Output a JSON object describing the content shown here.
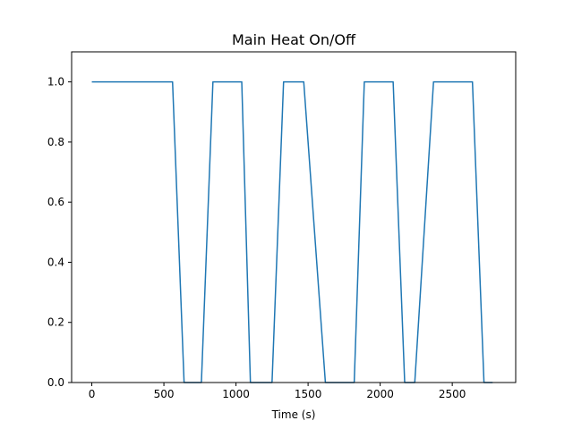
{
  "chart_data": {
    "type": "line",
    "title": "Main Heat On/Off",
    "xlabel": "Time (s)",
    "ylabel": "",
    "xlim": [
      -140,
      2940
    ],
    "ylim": [
      0.0,
      1.1
    ],
    "x_ticks": [
      0,
      500,
      1000,
      1500,
      2000,
      2500
    ],
    "x_tick_labels": [
      "0",
      "500",
      "1000",
      "1500",
      "2000",
      "2500"
    ],
    "y_ticks": [
      0.0,
      0.2,
      0.4,
      0.6,
      0.8,
      1.0
    ],
    "y_tick_labels": [
      "0.0",
      "0.2",
      "0.4",
      "0.6",
      "0.8",
      "1.0"
    ],
    "grid": false,
    "line_color": "#1f77b4",
    "series": [
      {
        "x": [
          0,
          560,
          640,
          760,
          840,
          1040,
          1100,
          1250,
          1330,
          1470,
          1620,
          1820,
          1890,
          2090,
          2170,
          2240,
          2370,
          2640,
          2720,
          2780
        ],
        "values": [
          1,
          1,
          0,
          0,
          1,
          1,
          0,
          0,
          1,
          1,
          0,
          0,
          1,
          1,
          0,
          0,
          1,
          1,
          0,
          0
        ]
      }
    ]
  }
}
